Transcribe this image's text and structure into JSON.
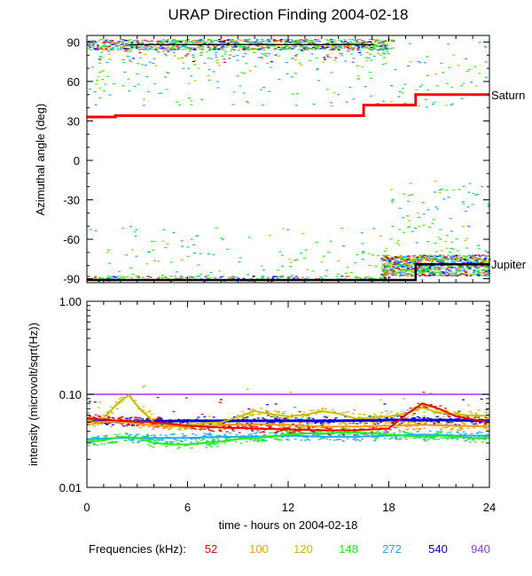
{
  "title": "URAP Direction Finding  2004-02-18",
  "chart_data": [
    {
      "type": "scatter",
      "panel": "top",
      "ylabel": "Azimuthal angle (deg)",
      "xlim": [
        0,
        24
      ],
      "ylim": [
        -93,
        95
      ],
      "yticks": [
        90,
        60,
        30,
        0,
        -30,
        -60,
        -90
      ],
      "xticks": [
        0,
        6,
        12,
        18,
        24
      ],
      "series": [
        {
          "name": "Saturn",
          "color": "#ff0000",
          "step": true,
          "x": [
            0,
            1.7,
            1.7,
            16.5,
            16.5,
            19.6,
            19.6,
            24
          ],
          "y": [
            33,
            33,
            34,
            34,
            42,
            42,
            50,
            50
          ]
        },
        {
          "name": "Jupiter",
          "color": "#000000",
          "step": false,
          "x": [
            0,
            16.5,
            16.5,
            19.6,
            19.6,
            24
          ],
          "y": [
            -91,
            -91,
            -91,
            -91,
            -79,
            -79
          ]
        }
      ],
      "labels": [
        {
          "text": "Saturn",
          "y": 50
        },
        {
          "text": "Jupiter",
          "y": -79
        }
      ],
      "grid": false
    },
    {
      "type": "line",
      "panel": "bottom",
      "ylabel": "intensity (microvolt/sqrt(Hz))",
      "xlabel": "time - hours on 2004-02-18",
      "xlim": [
        0,
        24
      ],
      "ylim": [
        0.01,
        1.0
      ],
      "yscale": "log",
      "yticks": [
        "1.00",
        "0.10",
        "0.01"
      ],
      "xticks": [
        0,
        6,
        12,
        18,
        24
      ],
      "series": [
        {
          "freq": "940",
          "color": "#9933ee",
          "x": [
            0,
            24
          ],
          "y": [
            0.1,
            0.1
          ]
        },
        {
          "freq": "540",
          "color": "#0000dd",
          "x": [
            0,
            3,
            6,
            9,
            12,
            15,
            18,
            21,
            24
          ],
          "y": [
            0.051,
            0.051,
            0.052,
            0.052,
            0.052,
            0.052,
            0.053,
            0.053,
            0.052
          ]
        },
        {
          "freq": "272",
          "color": "#22aaee",
          "x": [
            0,
            2,
            4,
            6,
            8,
            10,
            12,
            14,
            16,
            18,
            20,
            22,
            24
          ],
          "y": [
            0.033,
            0.034,
            0.034,
            0.034,
            0.035,
            0.035,
            0.036,
            0.035,
            0.035,
            0.036,
            0.037,
            0.036,
            0.036
          ]
        },
        {
          "freq": "148",
          "color": "#22ee22",
          "x": [
            0,
            1,
            2,
            3,
            4,
            5,
            6,
            7,
            8,
            9,
            10,
            11,
            12,
            13,
            14,
            15,
            16,
            17,
            18,
            19,
            20,
            21,
            22,
            23,
            24
          ],
          "y": [
            0.031,
            0.032,
            0.035,
            0.034,
            0.03,
            0.029,
            0.029,
            0.03,
            0.031,
            0.033,
            0.034,
            0.035,
            0.037,
            0.038,
            0.038,
            0.039,
            0.039,
            0.038,
            0.037,
            0.036,
            0.035,
            0.036,
            0.035,
            0.034,
            0.034
          ]
        },
        {
          "freq": "120",
          "color": "#ccbb00",
          "x": [
            0,
            1,
            2,
            2.5,
            3,
            4,
            5,
            6,
            7,
            8,
            9,
            10,
            11,
            12,
            13,
            14,
            15,
            16,
            17,
            18,
            19,
            20,
            21,
            22,
            23,
            24
          ],
          "y": [
            0.052,
            0.056,
            0.085,
            0.098,
            0.075,
            0.05,
            0.047,
            0.046,
            0.049,
            0.05,
            0.057,
            0.066,
            0.061,
            0.058,
            0.06,
            0.066,
            0.062,
            0.055,
            0.056,
            0.058,
            0.062,
            0.072,
            0.063,
            0.061,
            0.059,
            0.059
          ]
        },
        {
          "freq": "100",
          "color": "#ff9900",
          "x": [
            0,
            2,
            4,
            6,
            8,
            10,
            12,
            14,
            16,
            18,
            20,
            22,
            24
          ],
          "y": [
            0.05,
            0.051,
            0.046,
            0.045,
            0.047,
            0.048,
            0.047,
            0.045,
            0.045,
            0.046,
            0.047,
            0.046,
            0.045
          ]
        },
        {
          "freq": "52",
          "color": "#ee0000",
          "x": [
            0,
            2,
            4,
            6,
            8,
            10,
            12,
            14,
            16,
            18,
            19,
            20,
            21,
            22,
            24
          ],
          "y": [
            0.055,
            0.052,
            0.05,
            0.046,
            0.044,
            0.043,
            0.042,
            0.041,
            0.041,
            0.043,
            0.06,
            0.08,
            0.07,
            0.058,
            0.05
          ]
        }
      ],
      "grid": false
    }
  ],
  "legend": {
    "label": "Frequencies (kHz):",
    "items": [
      {
        "text": "52",
        "color": "#ee0000"
      },
      {
        "text": "100",
        "color": "#ff9900"
      },
      {
        "text": "120",
        "color": "#ccbb00"
      },
      {
        "text": "148",
        "color": "#22ee22"
      },
      {
        "text": "272",
        "color": "#22aaee"
      },
      {
        "text": "540",
        "color": "#0000dd"
      },
      {
        "text": "940",
        "color": "#9933ee"
      }
    ]
  }
}
